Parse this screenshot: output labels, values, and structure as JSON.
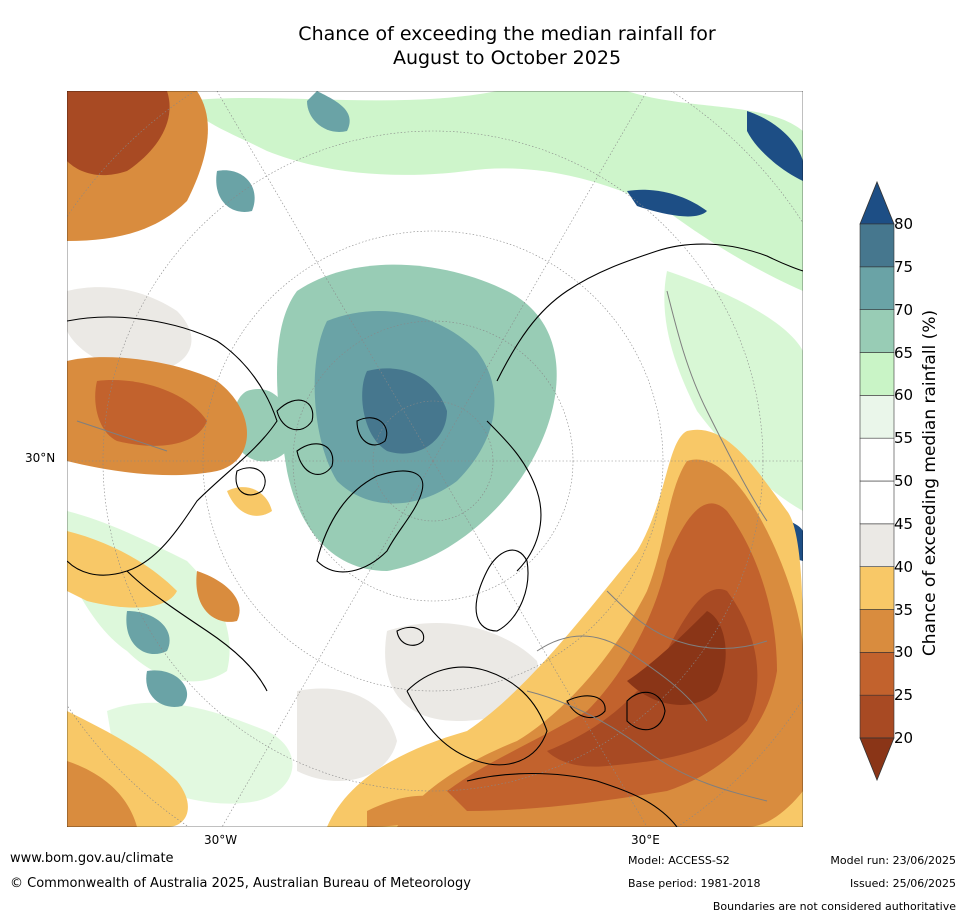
{
  "title": {
    "line1": "Chance of exceeding the median rainfall for",
    "line2": "August to October 2025"
  },
  "map": {
    "lat_label": "30°N",
    "lon_labels": [
      "30°W",
      "30°E"
    ]
  },
  "colorbar": {
    "title": "Chance of exceeding median rainfall (%)",
    "ticks": [
      "20",
      "25",
      "30",
      "35",
      "40",
      "45",
      "50",
      "55",
      "60",
      "65",
      "70",
      "75",
      "80"
    ],
    "colors": {
      "below_20": "#8a3517",
      "20_25": "#a84a23",
      "25_30": "#c2622d",
      "30_35": "#d98c3e",
      "35_40": "#f8c867",
      "40_45": "#ebe9e5",
      "45_50": "#ffffff",
      "50_55": "#ffffff",
      "55_60": "#eaf6ea",
      "60_65": "#c9f4c6",
      "65_70": "#98ccb5",
      "70_75": "#6aa3a6",
      "75_80": "#46778e",
      "above_80": "#1d4e85"
    }
  },
  "footer": {
    "website": "www.bom.gov.au/climate",
    "copyright": "© Commonwealth of Australia 2025, Australian Bureau of Meteorology",
    "model": "Model: ACCESS-S2",
    "base_period": "Base period: 1981-2018",
    "model_run": "Model run: 23/06/2025",
    "issued": "Issued: 25/06/2025",
    "disclaimer": "Boundaries are not considered authoritative"
  }
}
